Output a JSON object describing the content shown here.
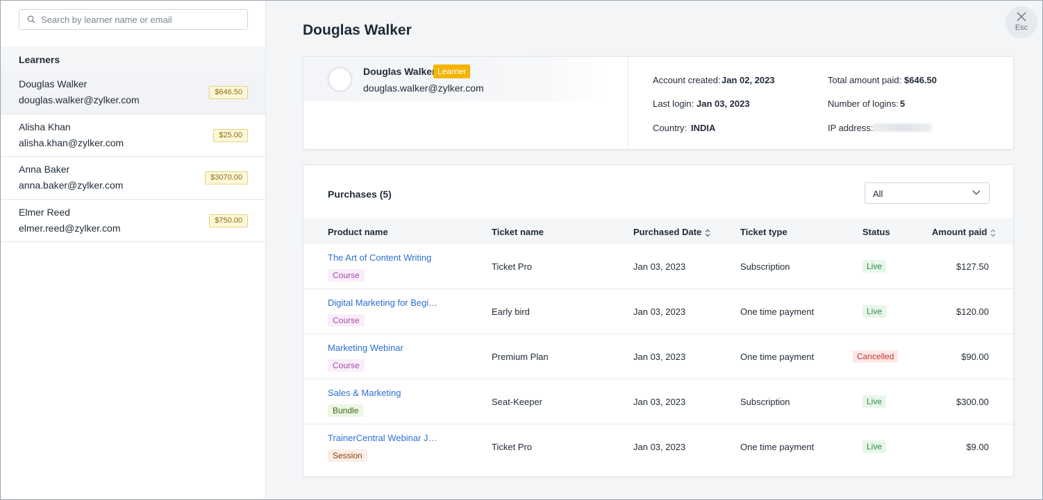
{
  "search": {
    "placeholder": "Search by learner name or email"
  },
  "learners": {
    "heading": "Learners",
    "items": [
      {
        "name": "Douglas Walker",
        "email": "douglas.walker@zylker.com",
        "amount": "$646.50"
      },
      {
        "name": "Alisha Khan",
        "email": "alisha.khan@zylker.com",
        "amount": "$25.00"
      },
      {
        "name": "Anna Baker",
        "email": "anna.baker@zylker.com",
        "amount": "$3070.00"
      },
      {
        "name": "Elmer Reed",
        "email": "elmer.reed@zylker.com",
        "amount": "$750.00"
      }
    ]
  },
  "page": {
    "title": "Douglas Walker",
    "close_label": "Esc"
  },
  "profile": {
    "name": "Douglas Walker",
    "role": "Learner",
    "email": "douglas.walker@zylker.com",
    "account_created_label": "Account created:",
    "account_created": "Jan 02, 2023",
    "last_login_label": "Last login:",
    "last_login": "Jan 03, 2023",
    "country_label": "Country:",
    "country": "INDIA",
    "total_paid_label": "Total amount paid:",
    "total_paid": "$646.50",
    "logins_label": "Number of logins:",
    "logins": "5",
    "ip_label": "IP address:"
  },
  "purchases": {
    "title": "Purchases (5)",
    "filter": "All",
    "columns": {
      "product": "Product name",
      "ticket": "Ticket name",
      "date": "Purchased Date",
      "type": "Ticket type",
      "status": "Status",
      "amount": "Amount paid"
    },
    "rows": [
      {
        "product": "The Art of Content Writing",
        "tag": "Course",
        "ticket": "Ticket Pro",
        "date": "Jan 03, 2023",
        "type": "Subscription",
        "status": "Live",
        "amount": "$127.50"
      },
      {
        "product": "Digital Marketing for Begi…",
        "tag": "Course",
        "ticket": "Early bird",
        "date": "Jan 03, 2023",
        "type": "One time payment",
        "status": "Live",
        "amount": "$120.00"
      },
      {
        "product": "Marketing Webinar",
        "tag": "Course",
        "ticket": "Premium Plan",
        "date": "Jan 03, 2023",
        "type": "One time payment",
        "status": "Cancelled",
        "amount": "$90.00"
      },
      {
        "product": "Sales & Marketing",
        "tag": "Bundle",
        "ticket": "Seat-Keeper",
        "date": "Jan 03, 2023",
        "type": "Subscription",
        "status": "Live",
        "amount": "$300.00"
      },
      {
        "product": "TrainerCentral Webinar J…",
        "tag": "Session",
        "ticket": "Ticket Pro",
        "date": "Jan 03, 2023",
        "type": "One time payment",
        "status": "Live",
        "amount": "$9.00"
      }
    ]
  },
  "colors": {
    "link": "#2d6fd1",
    "learner_badge": "#f4b400",
    "live": "#2e8b3d",
    "cancelled": "#c8332f"
  }
}
